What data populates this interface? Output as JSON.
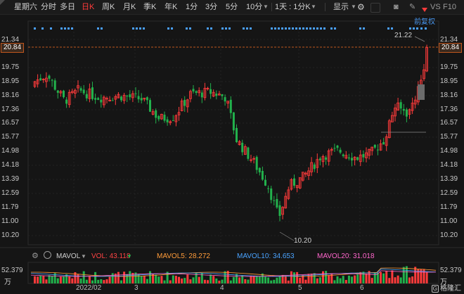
{
  "toolbar": {
    "weekday": "星期六",
    "tabs": [
      "分时",
      "多日",
      "日K",
      "周K",
      "月K",
      "季K",
      "年K",
      "1分",
      "3分",
      "5分",
      "10分"
    ],
    "active": "日K",
    "period_select": "1天 : 1分K",
    "display_label": "显示",
    "vs_label": "VS",
    "f10_label": "F10"
  },
  "main": {
    "fq_label": "前复权",
    "y_ticks": [
      "21.34",
      "20.84",
      "19.75",
      "18.95",
      "18.16",
      "17.36",
      "16.57",
      "15.77",
      "14.98",
      "14.18",
      "13.39",
      "12.59",
      "11.79",
      "11.00",
      "10.20"
    ],
    "current_price": "20.84",
    "high_label": "21.22",
    "low_label": "10.20"
  },
  "volume": {
    "indicator": "MAVOL",
    "vol": "VOL: 43.118",
    "ma5": "MAVOL5: 28.272",
    "ma10": "MAVOL10: 34.653",
    "ma20": "MAVOL20: 31.018",
    "top_value": "52.379",
    "unit": "万",
    "colors": {
      "vol": "#ff4444",
      "ma5": "#ff9c3a",
      "ma10": "#4aa3ff",
      "ma20": "#ff66cc"
    }
  },
  "x_labels": [
    "2022/02",
    "3",
    "4",
    "5",
    "6"
  ],
  "footer": {
    "logo": "格隆汇"
  },
  "colors": {
    "up": "#ff3b3b",
    "down": "#22b14c",
    "bg": "#151515",
    "accent": "#4a9fff",
    "price_line": "#c0561d"
  }
}
